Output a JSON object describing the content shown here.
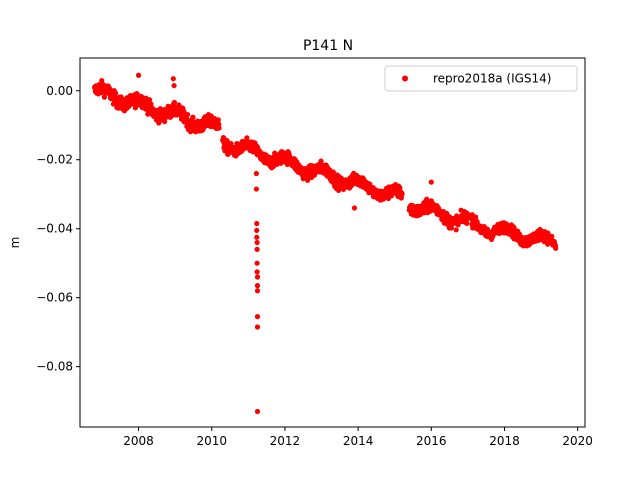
{
  "chart_data": {
    "type": "scatter",
    "title": "P141 N",
    "xlabel": "",
    "ylabel": "m",
    "xlim": [
      2006.4,
      2020.2
    ],
    "ylim": [
      -0.0975,
      0.0095
    ],
    "xticks": [
      2008,
      2010,
      2012,
      2014,
      2016,
      2018,
      2020
    ],
    "xtick_labels": [
      "2008",
      "2010",
      "2012",
      "2014",
      "2016",
      "2018",
      "2020"
    ],
    "yticks": [
      0.0,
      -0.02,
      -0.04,
      -0.06,
      -0.08
    ],
    "ytick_labels": [
      "0.00",
      "−0.02",
      "−0.04",
      "−0.06",
      "−0.08"
    ],
    "grid": false,
    "legend_position": "top-right",
    "series": [
      {
        "name": "repro2018a (IGS14)",
        "color": "#ff0000",
        "marker": "circle",
        "segments": [
          {
            "x_start": 2006.8,
            "x_end": 2010.2,
            "trend_start": 0.0,
            "trend_end": -0.011,
            "noise": 0.0018
          },
          {
            "x_start": 2010.3,
            "x_end": 2015.2,
            "trend_start": -0.015,
            "trend_end": -0.031,
            "noise": 0.0017
          },
          {
            "x_start": 2015.4,
            "x_end": 2017.0,
            "trend_start": -0.033,
            "trend_end": -0.038,
            "noise": 0.0017
          },
          {
            "x_start": 2017.1,
            "x_end": 2019.4,
            "trend_start": -0.039,
            "trend_end": -0.044,
            "noise": 0.0015
          }
        ],
        "outliers": [
          {
            "x": 2008.0,
            "y": 0.0045
          },
          {
            "x": 2008.95,
            "y": 0.0035
          },
          {
            "x": 2008.97,
            "y": 0.0015
          },
          {
            "x": 2011.22,
            "y": -0.024
          },
          {
            "x": 2011.22,
            "y": -0.0285
          },
          {
            "x": 2011.23,
            "y": -0.0385
          },
          {
            "x": 2011.23,
            "y": -0.0405
          },
          {
            "x": 2011.23,
            "y": -0.0425
          },
          {
            "x": 2011.24,
            "y": -0.044
          },
          {
            "x": 2011.24,
            "y": -0.046
          },
          {
            "x": 2011.24,
            "y": -0.05
          },
          {
            "x": 2011.24,
            "y": -0.0525
          },
          {
            "x": 2011.25,
            "y": -0.054
          },
          {
            "x": 2011.25,
            "y": -0.0565
          },
          {
            "x": 2011.25,
            "y": -0.058
          },
          {
            "x": 2011.25,
            "y": -0.0655
          },
          {
            "x": 2011.25,
            "y": -0.0685
          },
          {
            "x": 2011.25,
            "y": -0.093
          },
          {
            "x": 2013.9,
            "y": -0.034
          },
          {
            "x": 2016.0,
            "y": -0.0265
          }
        ]
      }
    ]
  }
}
